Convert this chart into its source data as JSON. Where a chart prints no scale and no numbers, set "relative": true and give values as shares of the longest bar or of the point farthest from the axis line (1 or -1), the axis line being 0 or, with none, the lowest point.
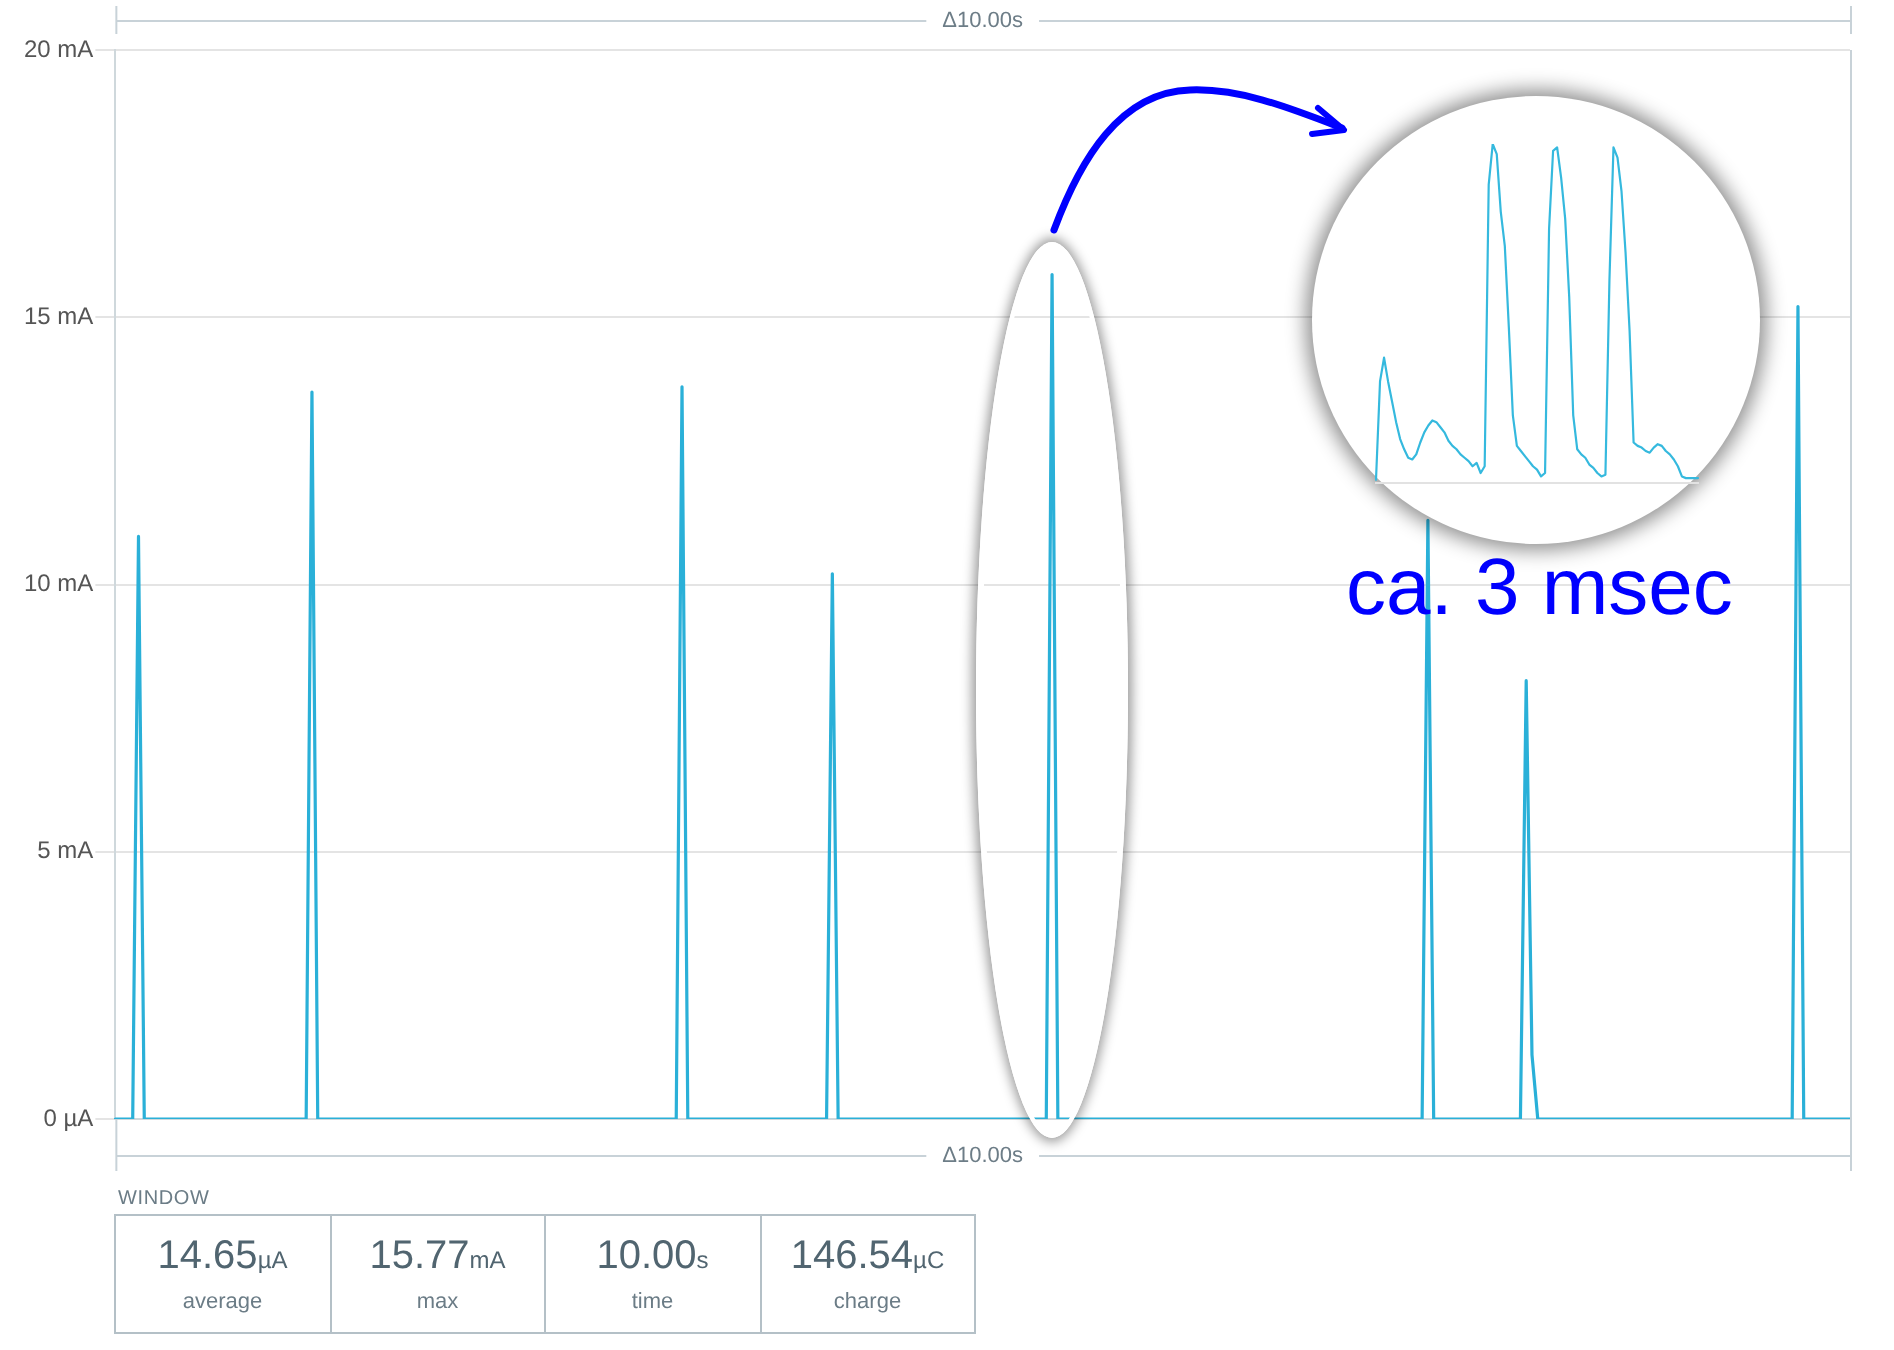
{
  "chart_data": [
    {
      "type": "line",
      "xlabel": "Δ10.00s",
      "x2label": "Δ10.00s",
      "tick_labels": "y",
      "grid": "y",
      "color": "#2ab0d8",
      "ylim": [
        0,
        20
      ],
      "yticks": [
        {
          "value": 0,
          "label": "0 µA"
        },
        {
          "value": 5,
          "label": "5 mA"
        },
        {
          "value": 10,
          "label": "10 mA"
        },
        {
          "value": 15,
          "label": "15 mA"
        },
        {
          "value": 20,
          "label": "20 mA"
        }
      ],
      "annotations": [
        "ca. 3 msec"
      ],
      "categories": [
        null,
        null,
        null,
        null,
        null,
        null,
        null,
        null,
        null,
        null,
        null,
        null,
        null,
        null,
        null,
        null,
        null,
        null,
        null,
        null,
        null,
        null,
        null,
        null,
        null,
        null,
        null,
        null,
        null,
        null,
        null,
        null,
        null,
        null,
        null,
        null,
        null,
        null,
        null,
        null,
        null,
        null,
        null,
        null,
        null,
        null,
        null,
        null,
        null,
        null,
        null,
        null,
        null,
        null,
        null,
        null,
        null,
        null,
        null,
        null,
        null,
        null,
        null,
        null,
        null,
        null,
        null,
        null,
        null,
        null,
        null,
        null,
        null,
        null,
        null,
        null,
        null,
        null,
        null,
        null,
        null,
        null,
        null,
        null,
        null,
        null,
        null,
        null,
        null,
        null,
        null,
        null,
        null,
        null,
        null,
        null,
        null,
        null,
        null,
        null,
        null,
        null,
        null,
        null,
        null,
        null,
        null,
        null,
        null,
        null,
        null,
        null,
        null,
        null,
        null,
        null,
        null,
        null,
        null,
        null,
        null,
        null,
        null,
        null,
        null,
        null,
        null,
        null,
        null,
        null,
        null,
        null,
        null,
        null,
        null,
        null,
        null,
        null,
        null,
        null,
        null,
        null,
        null,
        null,
        null,
        null,
        null,
        null,
        null,
        null,
        null,
        null,
        null,
        null,
        null,
        null,
        null,
        null,
        null,
        null,
        null,
        null,
        null,
        null,
        null,
        null,
        null,
        null,
        null,
        null,
        null,
        null,
        null,
        null,
        null,
        null,
        null,
        null,
        null,
        null,
        null,
        null,
        null,
        null,
        null,
        null,
        null,
        null,
        null,
        null,
        null,
        null,
        null,
        null,
        null,
        null,
        null,
        null,
        null,
        null,
        null,
        null,
        null,
        null,
        null,
        null,
        null,
        null,
        null,
        null,
        null,
        null,
        null,
        null,
        null,
        null,
        null,
        null,
        null,
        null,
        null,
        null,
        null,
        null,
        null,
        null,
        null,
        null,
        null,
        null,
        null,
        null,
        null,
        null,
        null,
        null,
        null,
        null,
        null,
        null,
        null,
        null,
        null,
        null,
        null,
        null,
        null,
        null,
        null,
        null,
        null,
        null,
        null,
        null,
        null,
        null,
        null,
        null,
        null,
        null,
        null,
        null,
        null,
        null,
        null,
        null,
        null,
        null,
        null,
        null,
        null,
        null,
        null,
        null,
        null,
        null,
        null,
        null,
        null,
        null,
        null,
        null,
        null,
        null,
        null,
        null,
        null,
        null,
        null,
        null,
        null,
        null,
        null,
        null,
        null,
        null,
        null,
        null,
        null,
        null,
        null
      ],
      "values": [
        0,
        0,
        0,
        0,
        10.9,
        0,
        0,
        0,
        0,
        0,
        0,
        0,
        0,
        0,
        0,
        0,
        0,
        0,
        0,
        0,
        0,
        0,
        0,
        0,
        0,
        0,
        0,
        0,
        0,
        0,
        0,
        0,
        0,
        0,
        13.6,
        0,
        0,
        0,
        0,
        0,
        0,
        0,
        0,
        0,
        0,
        0,
        0,
        0,
        0,
        0,
        0,
        0,
        0,
        0,
        0,
        0,
        0,
        0,
        0,
        0,
        0,
        0,
        0,
        0,
        0,
        0,
        0,
        0,
        0,
        0,
        0,
        0,
        0,
        0,
        0,
        0,
        0,
        0,
        0,
        0,
        0,
        0,
        0,
        0,
        0,
        0,
        0,
        0,
        0,
        0,
        0,
        0,
        0,
        0,
        0,
        0,
        0,
        0,
        13.7,
        0,
        0,
        0,
        0,
        0,
        0,
        0,
        0,
        0,
        0,
        0,
        0,
        0,
        0,
        0,
        0,
        0,
        0,
        0,
        0,
        0,
        0,
        0,
        0,
        0,
        10.2,
        0,
        0,
        0,
        0,
        0,
        0,
        0,
        0,
        0,
        0,
        0,
        0,
        0,
        0,
        0,
        0,
        0,
        0,
        0,
        0,
        0,
        0,
        0,
        0,
        0,
        0,
        0,
        0,
        0,
        0,
        0,
        0,
        0,
        0,
        0,
        0,
        0,
        15.8,
        0,
        0,
        0,
        0,
        0,
        0,
        0,
        0,
        0,
        0,
        0,
        0,
        0,
        0,
        0,
        0,
        0,
        0,
        0,
        0,
        0,
        0,
        0,
        0,
        0,
        0,
        0,
        0,
        0,
        0,
        0,
        0,
        0,
        0,
        0,
        0,
        0,
        0,
        0,
        0,
        0,
        0,
        0,
        0,
        0,
        0,
        0,
        0,
        0,
        0,
        0,
        0,
        0,
        0,
        0,
        0,
        0,
        0,
        0,
        0,
        0,
        0,
        0,
        0,
        11.2,
        0,
        0,
        0,
        0,
        0,
        0,
        0,
        0,
        0,
        0,
        0,
        0,
        0,
        0,
        0,
        0,
        8.2,
        1.2,
        0,
        0,
        0,
        0,
        0,
        0,
        0,
        0,
        0,
        0,
        0,
        0,
        0,
        0,
        0,
        0,
        0,
        0,
        0,
        0,
        0,
        0,
        0,
        0,
        0,
        0,
        0,
        0,
        0,
        0,
        0,
        0,
        0,
        0,
        0,
        0,
        0,
        0,
        0,
        0,
        0,
        0,
        0,
        0,
        0,
        15.2,
        0,
        0,
        0,
        0,
        0,
        0,
        0,
        0,
        0
      ]
    },
    {
      "type": "line",
      "relative": true,
      "color": "#35b9de",
      "categories": [
        null,
        null,
        null,
        null,
        null,
        null,
        null,
        null,
        null,
        null,
        null,
        null,
        null,
        null,
        null,
        null,
        null,
        null,
        null,
        null,
        null,
        null,
        null,
        null,
        null,
        null,
        null,
        null,
        null,
        null,
        null,
        null,
        null,
        null,
        null,
        null,
        null,
        null,
        null,
        null,
        null,
        null,
        null,
        null,
        null,
        null,
        null,
        null,
        null,
        null,
        null,
        null,
        null,
        null,
        null,
        null,
        null,
        null,
        null,
        null,
        null,
        null,
        null,
        null,
        null,
        null,
        null,
        null,
        null,
        null,
        null,
        null,
        null,
        null,
        null,
        null,
        null,
        null,
        null,
        null,
        null
      ],
      "values": [
        0.01,
        0.3,
        0.37,
        0.3,
        0.24,
        0.18,
        0.13,
        0.1,
        0.075,
        0.07,
        0.085,
        0.12,
        0.15,
        0.17,
        0.185,
        0.18,
        0.165,
        0.15,
        0.125,
        0.11,
        0.1,
        0.085,
        0.075,
        0.065,
        0.05,
        0.06,
        0.03,
        0.05,
        0.88,
        1,
        0.97,
        0.8,
        0.7,
        0.46,
        0.2,
        0.11,
        0.095,
        0.08,
        0.065,
        0.05,
        0.04,
        0.02,
        0.03,
        0.75,
        0.98,
        0.99,
        0.9,
        0.78,
        0.55,
        0.2,
        0.1,
        0.085,
        0.075,
        0.055,
        0.045,
        0.03,
        0.02,
        0.025,
        0.6,
        0.99,
        0.96,
        0.86,
        0.68,
        0.45,
        0.12,
        0.11,
        0.105,
        0.095,
        0.09,
        0.105,
        0.115,
        0.11,
        0.095,
        0.085,
        0.07,
        0.05,
        0.02,
        0.015,
        0.015,
        0.015,
        0.015
      ]
    },
    {
      "type": "other",
      "title": "WINDOW",
      "annotations": [
        "14.65µA",
        "average",
        "15.77mA",
        "max",
        "10.00s",
        "time",
        "146.54µC",
        "charge"
      ]
    }
  ]
}
